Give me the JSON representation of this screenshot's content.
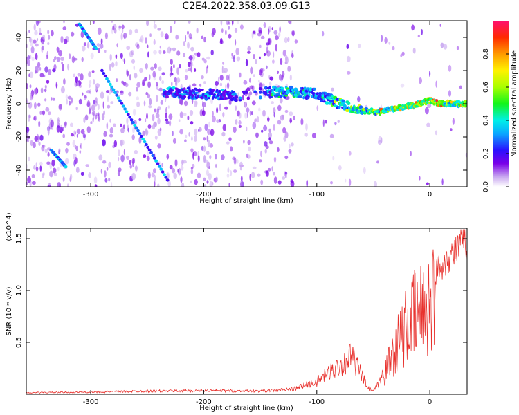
{
  "title": "C2E4.2022.358.03.09.G13",
  "chart_data": [
    {
      "type": "heatmap",
      "xlabel": "Height of straight line (km)",
      "ylabel": "Frequency (Hz)",
      "xlim": [
        -357,
        33
      ],
      "ylim": [
        -50,
        50
      ],
      "xticks": [
        -300,
        -200,
        -100,
        0
      ],
      "yticks": [
        -40,
        -20,
        0,
        20,
        40
      ],
      "colorbar": {
        "label": "Normalized spectral amplitude",
        "range": [
          0,
          1
        ],
        "ticks": [
          0.0,
          0.2,
          0.4,
          0.6,
          0.8
        ]
      },
      "features": {
        "steady_tone": [
          {
            "x": -235,
            "y": 7
          },
          {
            "x": -200,
            "y": 6
          },
          {
            "x": -170,
            "y": 5
          },
          {
            "x": -145,
            "y": 7
          },
          {
            "x": -120,
            "y": 7
          },
          {
            "x": -100,
            "y": 6
          },
          {
            "x": -80,
            "y": 0
          },
          {
            "x": -60,
            "y": -4
          },
          {
            "x": -45,
            "y": -5
          },
          {
            "x": -30,
            "y": -3
          },
          {
            "x": -15,
            "y": -1
          },
          {
            "x": 0,
            "y": 2
          },
          {
            "x": 10,
            "y": 0
          },
          {
            "x": 33,
            "y": 0
          }
        ],
        "descending_streaks": [
          {
            "from": [
              -310,
              48
            ],
            "to": [
              -295,
              33
            ]
          },
          {
            "from": [
              -290,
              20
            ],
            "to": [
              -232,
              -46
            ]
          },
          {
            "from": [
              -335,
              -28
            ],
            "to": [
              -322,
              -38
            ]
          }
        ]
      }
    },
    {
      "type": "line",
      "xlabel": "Height of straight line (km)",
      "ylabel": "SNR (10 * v/v)",
      "y_multiplier": "(x10^4)",
      "xlim": [
        -357,
        33
      ],
      "ylim": [
        0,
        1.6
      ],
      "xticks": [
        -300,
        -200,
        -100,
        0
      ],
      "yticks": [
        0.5,
        1.0,
        1.5
      ],
      "series": [
        {
          "color": "#e8312d",
          "x": [
            -357,
            -300,
            -250,
            -200,
            -150,
            -120,
            -110,
            -100,
            -90,
            -80,
            -75,
            -70,
            -65,
            -60,
            -55,
            -50,
            -45,
            -40,
            -35,
            -30,
            -25,
            -20,
            -15,
            -10,
            -5,
            0,
            5,
            10,
            15,
            20,
            25,
            30,
            33
          ],
          "y": [
            0.015,
            0.02,
            0.03,
            0.035,
            0.03,
            0.05,
            0.09,
            0.12,
            0.2,
            0.28,
            0.3,
            0.38,
            0.28,
            0.18,
            0.06,
            0.03,
            0.1,
            0.25,
            0.45,
            0.62,
            0.75,
            0.88,
            0.98,
            1.05,
            1.12,
            1.2,
            1.27,
            1.33,
            1.4,
            1.46,
            1.52,
            1.56,
            1.57
          ]
        }
      ]
    }
  ]
}
